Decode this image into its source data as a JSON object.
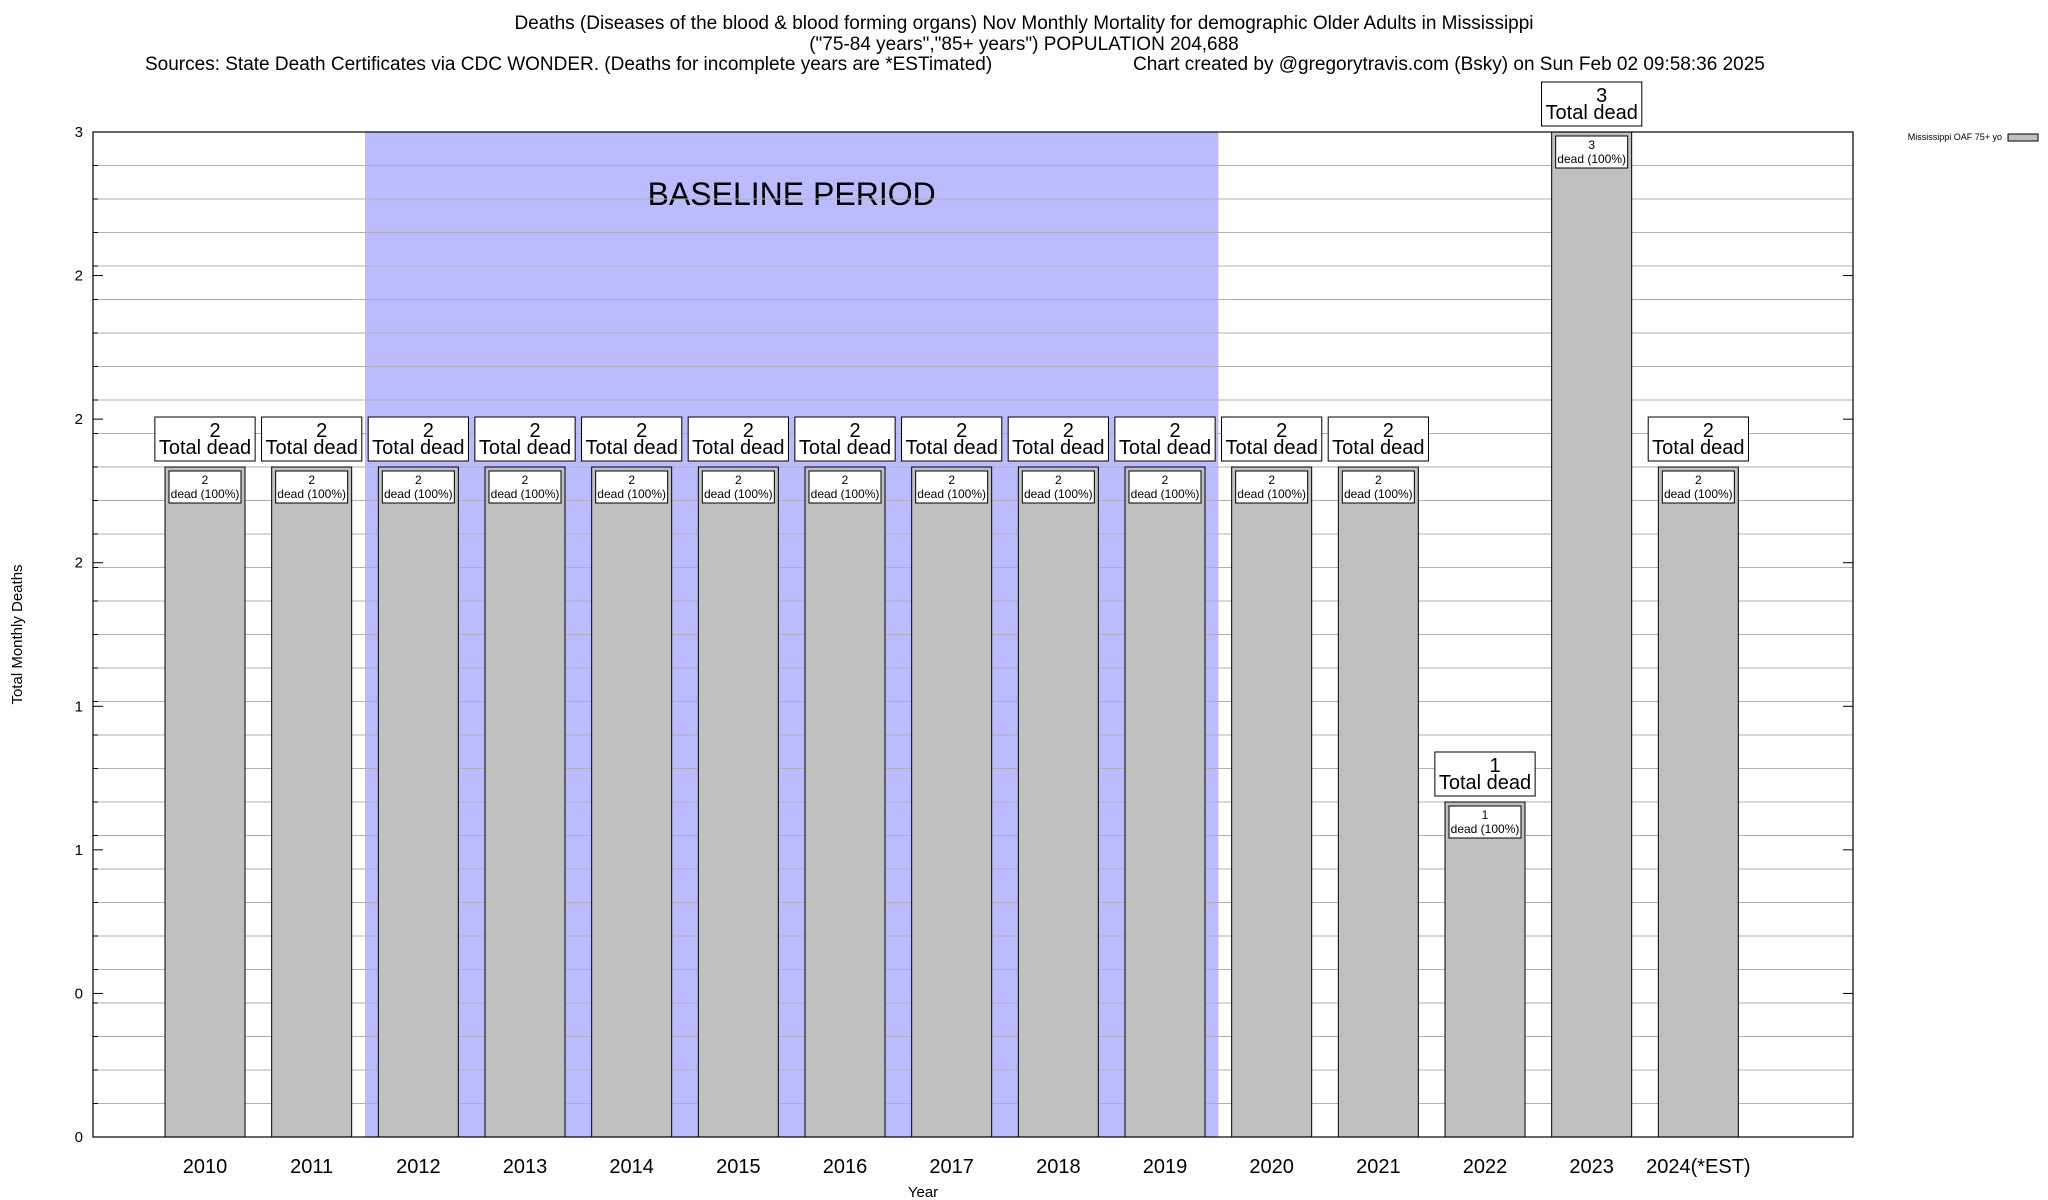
{
  "header": {
    "title_line1": "Deaths (Diseases of the blood & blood forming organs) Nov Monthly Mortality for demographic Older Adults in Mississippi",
    "title_line2": "(\"75-84 years\",\"85+ years\") POPULATION 204,688",
    "sources": "Sources: State Death Certificates via CDC WONDER. (Deaths for incomplete years are *ESTimated)",
    "credit": "Chart created by @gregorytravis.com (Bsky) on Sun Feb 02 09:58:36 2025"
  },
  "chart_data": {
    "type": "bar",
    "title": "Deaths (Diseases of the blood & blood forming organs) Nov Monthly Mortality for demographic Older Adults in Mississippi",
    "xlabel": "Year",
    "ylabel": "Total Monthly Deaths",
    "categories": [
      "2010",
      "2011",
      "2012",
      "2013",
      "2014",
      "2015",
      "2016",
      "2017",
      "2018",
      "2019",
      "2020",
      "2021",
      "2022",
      "2023",
      "2024(*EST)"
    ],
    "series": [
      {
        "name": "Mississippi OAF 75+ yo",
        "values": [
          2,
          2,
          2,
          2,
          2,
          2,
          2,
          2,
          2,
          2,
          2,
          2,
          1,
          3,
          2
        ],
        "color": "#c0c0c0"
      }
    ],
    "total_labels": [
      "2",
      "2",
      "2",
      "2",
      "2",
      "2",
      "2",
      "2",
      "2",
      "2",
      "2",
      "2",
      "1",
      "3",
      "2"
    ],
    "total_suffix": "Total dead",
    "inner_labels": [
      "2",
      "2",
      "2",
      "2",
      "2",
      "2",
      "2",
      "2",
      "2",
      "2",
      "2",
      "2",
      "1",
      "3",
      "2"
    ],
    "inner_suffix": "dead (100%)",
    "ytick_labels": [
      "0",
      "0",
      "1",
      "1",
      "2",
      "2",
      "2",
      "3"
    ],
    "ylim": [
      0,
      3
    ],
    "grid": true,
    "legend": "top-right",
    "baseline": {
      "label": "BASELINE PERIOD",
      "start": "2012",
      "end": "2019",
      "color": "#bbbbff"
    }
  }
}
